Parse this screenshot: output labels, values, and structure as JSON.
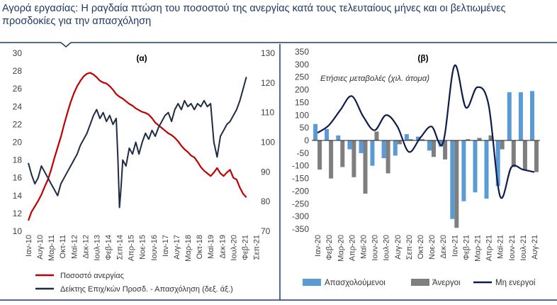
{
  "title": "Αγορά εργασίας: Η ραγδαία πτώση του ποσοστού της ανεργίας κατά τους τελευταίους μήνες και οι βελτιωμένες προσδοκίες για την απασχόληση",
  "colors": {
    "frame": "#1f3864",
    "red": "#c00000",
    "navy": "#1f2a44",
    "lightblue": "#5b9bd5",
    "gray": "#7f7f7f",
    "darknavy": "#0d1b4f"
  },
  "chart_data": [
    {
      "type": "line",
      "panel_label": "(α)",
      "x_ticks": [
        "Ιαν-10",
        "Αυγ-10",
        "Μαρ-11",
        "Οκτ-11",
        "Μαϊ-12",
        "Δεκ-12",
        "Ιουλ-13",
        "Φεβ-14",
        "Σεπ-14",
        "Απρ-15",
        "Νοε-15",
        "Ιουν-16",
        "Ιαν-17",
        "Αυγ-17",
        "Μαρ-18",
        "Οκτ-18",
        "Μαϊ-19",
        "Δεκ-19",
        "Ιουλ-20",
        "Φεβ-21",
        "Σεπ-21"
      ],
      "y_left": {
        "min": 10,
        "max": 30,
        "ticks": [
          "10",
          "12",
          "14",
          "16",
          "18",
          "20",
          "22",
          "24",
          "26",
          "28",
          "30"
        ]
      },
      "y_right": {
        "min": 70,
        "max": 130,
        "ticks": [
          "70",
          "80",
          "90",
          "100",
          "110",
          "120",
          "130"
        ]
      },
      "series": [
        {
          "name": "Ποσοστό ανεργίας",
          "axis": "left",
          "color": "#c00000",
          "points": [
            [
              0,
              11.2
            ],
            [
              2,
              12.2
            ],
            [
              4,
              12.8
            ],
            [
              6,
              13.4
            ],
            [
              8,
              14.1
            ],
            [
              10,
              15.0
            ],
            [
              12,
              15.8
            ],
            [
              14,
              16.9
            ],
            [
              16,
              18.2
            ],
            [
              18,
              19.4
            ],
            [
              20,
              20.6
            ],
            [
              22,
              22.0
            ],
            [
              24,
              23.3
            ],
            [
              26,
              24.5
            ],
            [
              28,
              25.5
            ],
            [
              30,
              26.3
            ],
            [
              32,
              26.9
            ],
            [
              34,
              27.4
            ],
            [
              36,
              27.7
            ],
            [
              38,
              27.8
            ],
            [
              40,
              27.6
            ],
            [
              42,
              27.3
            ],
            [
              44,
              26.9
            ],
            [
              46,
              26.7
            ],
            [
              48,
              26.6
            ],
            [
              50,
              26.3
            ],
            [
              52,
              25.9
            ],
            [
              54,
              25.4
            ],
            [
              56,
              25.1
            ],
            [
              58,
              24.9
            ],
            [
              60,
              24.6
            ],
            [
              62,
              24.3
            ],
            [
              64,
              24.1
            ],
            [
              66,
              23.8
            ],
            [
              68,
              23.6
            ],
            [
              70,
              23.4
            ],
            [
              72,
              23.3
            ],
            [
              74,
              23.1
            ],
            [
              76,
              22.7
            ],
            [
              78,
              22.2
            ],
            [
              80,
              21.9
            ],
            [
              82,
              21.6
            ],
            [
              84,
              21.3
            ],
            [
              86,
              21.0
            ],
            [
              88,
              20.8
            ],
            [
              90,
              20.5
            ],
            [
              92,
              20.1
            ],
            [
              94,
              19.6
            ],
            [
              96,
              19.2
            ],
            [
              98,
              18.9
            ],
            [
              100,
              18.5
            ],
            [
              102,
              18.3
            ],
            [
              104,
              17.8
            ],
            [
              106,
              17.2
            ],
            [
              108,
              16.8
            ],
            [
              110,
              16.5
            ],
            [
              112,
              16.2
            ],
            [
              114,
              16.6
            ],
            [
              116,
              17.1
            ],
            [
              118,
              16.5
            ],
            [
              120,
              16.2
            ],
            [
              122,
              16.6
            ],
            [
              124,
              16.9
            ],
            [
              126,
              16.0
            ],
            [
              128,
              15.8
            ],
            [
              130,
              14.9
            ],
            [
              132,
              14.2
            ],
            [
              134,
              13.8
            ]
          ]
        },
        {
          "name": "Δείκτης Επιχ/κών Προσδ. - Απασχόληση (δεξ. άξ.)",
          "axis": "right",
          "color": "#1f2a44",
          "points": [
            [
              0,
              93
            ],
            [
              2,
              89
            ],
            [
              4,
              86
            ],
            [
              6,
              88
            ],
            [
              8,
              92
            ],
            [
              10,
              90
            ],
            [
              12,
              88
            ],
            [
              14,
              86
            ],
            [
              16,
              84
            ],
            [
              18,
              82
            ],
            [
              20,
              86
            ],
            [
              22,
              88
            ],
            [
              24,
              90
            ],
            [
              26,
              92
            ],
            [
              28,
              94
            ],
            [
              30,
              96
            ],
            [
              32,
              99
            ],
            [
              34,
              101
            ],
            [
              36,
              103
            ],
            [
              38,
              106
            ],
            [
              40,
              109
            ],
            [
              42,
              111
            ],
            [
              44,
              108
            ],
            [
              46,
              110
            ],
            [
              48,
              107
            ],
            [
              50,
              109
            ],
            [
              52,
              106
            ],
            [
              54,
              108
            ],
            [
              55,
              95
            ],
            [
              56,
              78
            ],
            [
              57,
              85
            ],
            [
              58,
              94
            ],
            [
              60,
              92
            ],
            [
              62,
              98
            ],
            [
              64,
              96
            ],
            [
              66,
              100
            ],
            [
              68,
              96
            ],
            [
              70,
              100
            ],
            [
              72,
              103
            ],
            [
              74,
              101
            ],
            [
              76,
              104
            ],
            [
              78,
              102
            ],
            [
              80,
              105
            ],
            [
              82,
              107
            ],
            [
              84,
              109
            ],
            [
              86,
              110
            ],
            [
              88,
              107
            ],
            [
              90,
              111
            ],
            [
              92,
              113
            ],
            [
              94,
              111
            ],
            [
              96,
              114
            ],
            [
              98,
              112
            ],
            [
              100,
              113
            ],
            [
              102,
              111
            ],
            [
              104,
              113
            ],
            [
              106,
              112
            ],
            [
              108,
              114
            ],
            [
              110,
              112
            ],
            [
              112,
              113
            ],
            [
              114,
              100
            ],
            [
              116,
              95
            ],
            [
              118,
              102
            ],
            [
              120,
              104
            ],
            [
              122,
              106
            ],
            [
              124,
              107
            ],
            [
              126,
              109
            ],
            [
              128,
              111
            ],
            [
              130,
              114
            ],
            [
              132,
              118
            ],
            [
              134,
              122
            ]
          ]
        }
      ],
      "legend": [
        "Ποσοστό ανεργίας",
        "Δείκτης Επιχ/κών Προσδ. - Απασχόληση (δεξ. άξ.)"
      ]
    },
    {
      "type": "bar",
      "panel_label": "(β)",
      "annotation": "Ετήσιες μεταβολές (χιλ. άτομα)",
      "categories": [
        "Ιαν-20",
        "Φεβ-20",
        "Μαρ-20",
        "Απρ-20",
        "Μαϊ-20",
        "Ιουν-20",
        "Ιουλ-20",
        "Αυγ-20",
        "Σεπ-20",
        "Οκτ-20",
        "Νοε-20",
        "Δεκ-20",
        "Ιαν-21",
        "Φεβ-21",
        "Μαρ-21",
        "Απρ-21",
        "Μαϊ-21",
        "Ιουν-21",
        "Ιουλ-21",
        "Αυγ-21"
      ],
      "x_ticks": [
        "Ιαν-20",
        "Φεβ-20",
        "Μαρ-20",
        "Απρ-20",
        "Μαϊ-20",
        "Ιουν-20",
        "Ιουλ-20",
        "Αυγ-20",
        "Σεπ-20",
        "Οκτ-20",
        "Νοε-20",
        "Δεκ-20",
        "Ιαν-21",
        "Φεβ-21",
        "Μαρ-21",
        "Απρ-21",
        "Μαϊ-21",
        "Ιουν-21",
        "Ιουλ-21",
        "Αυγ-21"
      ],
      "y_axis": {
        "min": -350,
        "max": 350,
        "ticks": [
          "-350",
          "-300",
          "-250",
          "-200",
          "-150",
          "-100",
          "-50",
          "0",
          "50",
          "100",
          "150",
          "200",
          "250",
          "300",
          "350"
        ]
      },
      "series": [
        {
          "name": "Απασχολούμενοι",
          "color": "#5b9bd5",
          "values": [
            65,
            45,
            20,
            -35,
            -50,
            -100,
            -70,
            -60,
            25,
            15,
            -40,
            -25,
            -310,
            -240,
            -205,
            -230,
            -180,
            190,
            190,
            195
          ]
        },
        {
          "name": "Άνεργοι",
          "color": "#7f7f7f",
          "values": [
            -115,
            -150,
            -105,
            -145,
            -210,
            35,
            -130,
            -15,
            5,
            5,
            -65,
            -75,
            -345,
            5,
            10,
            20,
            -35,
            -105,
            -115,
            -125
          ]
        },
        {
          "name": "Μη ενεργοί",
          "color": "#0d1b4f",
          "type": "line",
          "values": [
            30,
            60,
            120,
            175,
            95,
            40,
            100,
            55,
            -45,
            10,
            55,
            -10,
            295,
            130,
            210,
            140,
            -220,
            -105,
            -115,
            -125
          ]
        }
      ],
      "legend": [
        "Απασχολούμενοι",
        "Άνεργοι",
        "Μη ενεργοί"
      ]
    }
  ]
}
